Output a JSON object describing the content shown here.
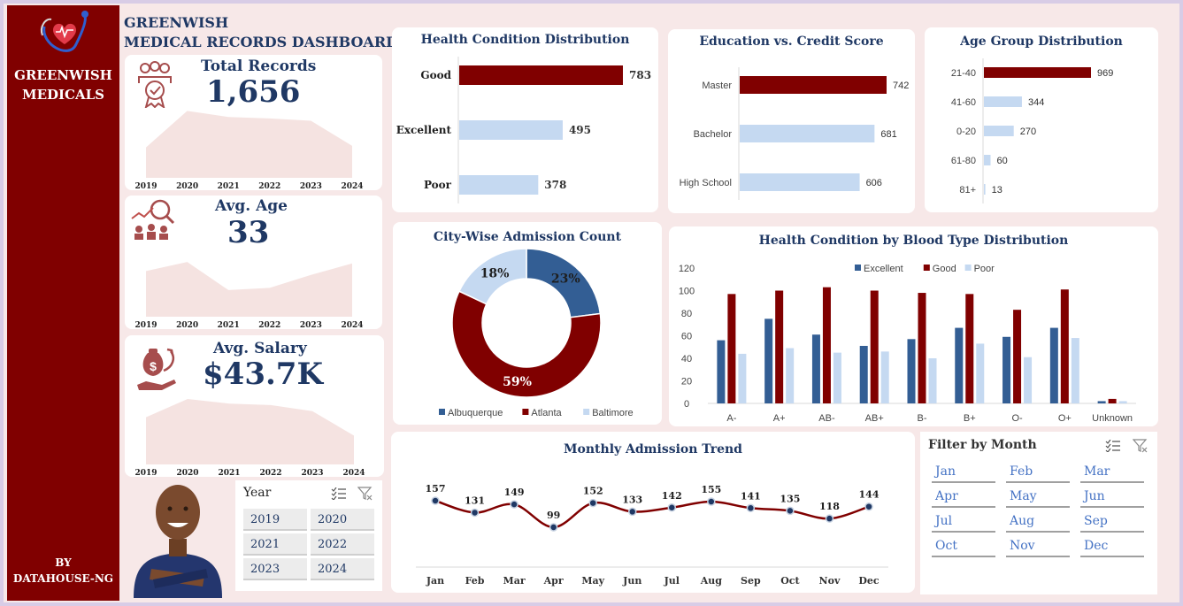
{
  "brand": {
    "name_line1": "GREENWISH",
    "name_line2": "MEDICALS",
    "by_line1": "BY",
    "by_line2": "DATAHOUSE-NG"
  },
  "header": {
    "line1": "GREENWISH",
    "line2": "MEDICAL RECORDS DASHBOARD"
  },
  "kpis": [
    {
      "label": "Total Records",
      "value": "1,656",
      "icon": "award-people-icon",
      "years": [
        "2019",
        "2020",
        "2021",
        "2022",
        "2023",
        "2024"
      ],
      "trend": [
        40,
        88,
        80,
        78,
        75,
        42
      ]
    },
    {
      "label": "Avg. Age",
      "value": "33",
      "icon": "growth-people-icon",
      "years": [
        "2019",
        "2020",
        "2021",
        "2022",
        "2023",
        "2024"
      ],
      "trend": [
        60,
        72,
        35,
        38,
        55,
        70
      ]
    },
    {
      "label": "Avg. Salary",
      "value": "$43.7K",
      "icon": "money-hand-icon",
      "years": [
        "2019",
        "2020",
        "2021",
        "2022",
        "2023",
        "2024"
      ],
      "trend": [
        62,
        86,
        80,
        78,
        70,
        38
      ]
    }
  ],
  "year_slicer": {
    "title": "Year",
    "options": [
      "2019",
      "2020",
      "2021",
      "2022",
      "2023",
      "2024"
    ]
  },
  "month_slicer": {
    "title": "Filter by Month",
    "options": [
      "Jan",
      "Feb",
      "Mar",
      "Apr",
      "May",
      "Jun",
      "Jul",
      "Aug",
      "Sep",
      "Oct",
      "Nov",
      "Dec"
    ]
  },
  "colors": {
    "dark_red": "#800000",
    "light_blue": "#c5d9f1",
    "navy": "#335e94",
    "title_navy": "#1f3864"
  },
  "chart_data": [
    {
      "id": "health_condition",
      "type": "bar",
      "orientation": "horizontal",
      "title": "Health Condition Distribution",
      "categories": [
        "Good",
        "Excellent",
        "Poor"
      ],
      "values": [
        783,
        495,
        378
      ]
    },
    {
      "id": "education_credit",
      "type": "bar",
      "orientation": "horizontal",
      "title": "Education vs. Credit Score",
      "categories": [
        "Master",
        "Bachelor",
        "High School"
      ],
      "values": [
        742,
        681,
        606
      ]
    },
    {
      "id": "age_group",
      "type": "bar",
      "orientation": "horizontal",
      "title": "Age Group Distribution",
      "categories": [
        "21-40",
        "41-60",
        "0-20",
        "61-80",
        "81+"
      ],
      "values": [
        969,
        344,
        270,
        60,
        13
      ]
    },
    {
      "id": "city_admissions",
      "type": "pie",
      "title": "City-Wise Admission Count",
      "categories": [
        "Albuquerque",
        "Atlanta",
        "Baltimore"
      ],
      "values": [
        23,
        59,
        18
      ],
      "labels": [
        "23%",
        "59%",
        "18%"
      ],
      "legend": "bottom"
    },
    {
      "id": "blood_type",
      "type": "bar",
      "title": "Health Condition by Blood Type Distribution",
      "categories": [
        "A-",
        "A+",
        "AB-",
        "AB+",
        "B-",
        "B+",
        "O-",
        "O+",
        "Unknown"
      ],
      "series": [
        {
          "name": "Excellent",
          "values": [
            56,
            75,
            61,
            51,
            57,
            67,
            59,
            67,
            2
          ]
        },
        {
          "name": "Good",
          "values": [
            97,
            100,
            103,
            100,
            98,
            97,
            83,
            101,
            4
          ]
        },
        {
          "name": "Poor",
          "values": [
            44,
            49,
            45,
            46,
            40,
            53,
            41,
            58,
            2
          ]
        }
      ],
      "ylim": [
        0,
        120
      ],
      "yticks": [
        "0",
        "20",
        "40",
        "60",
        "80",
        "100",
        "120"
      ],
      "legend": "top"
    },
    {
      "id": "monthly_trend",
      "type": "line",
      "title": "Monthly Admission Trend",
      "categories": [
        "Jan",
        "Feb",
        "Mar",
        "Apr",
        "May",
        "Jun",
        "Jul",
        "Aug",
        "Sep",
        "Oct",
        "Nov",
        "Dec"
      ],
      "values": [
        157,
        131,
        149,
        99,
        152,
        133,
        142,
        155,
        141,
        135,
        118,
        144
      ]
    }
  ]
}
